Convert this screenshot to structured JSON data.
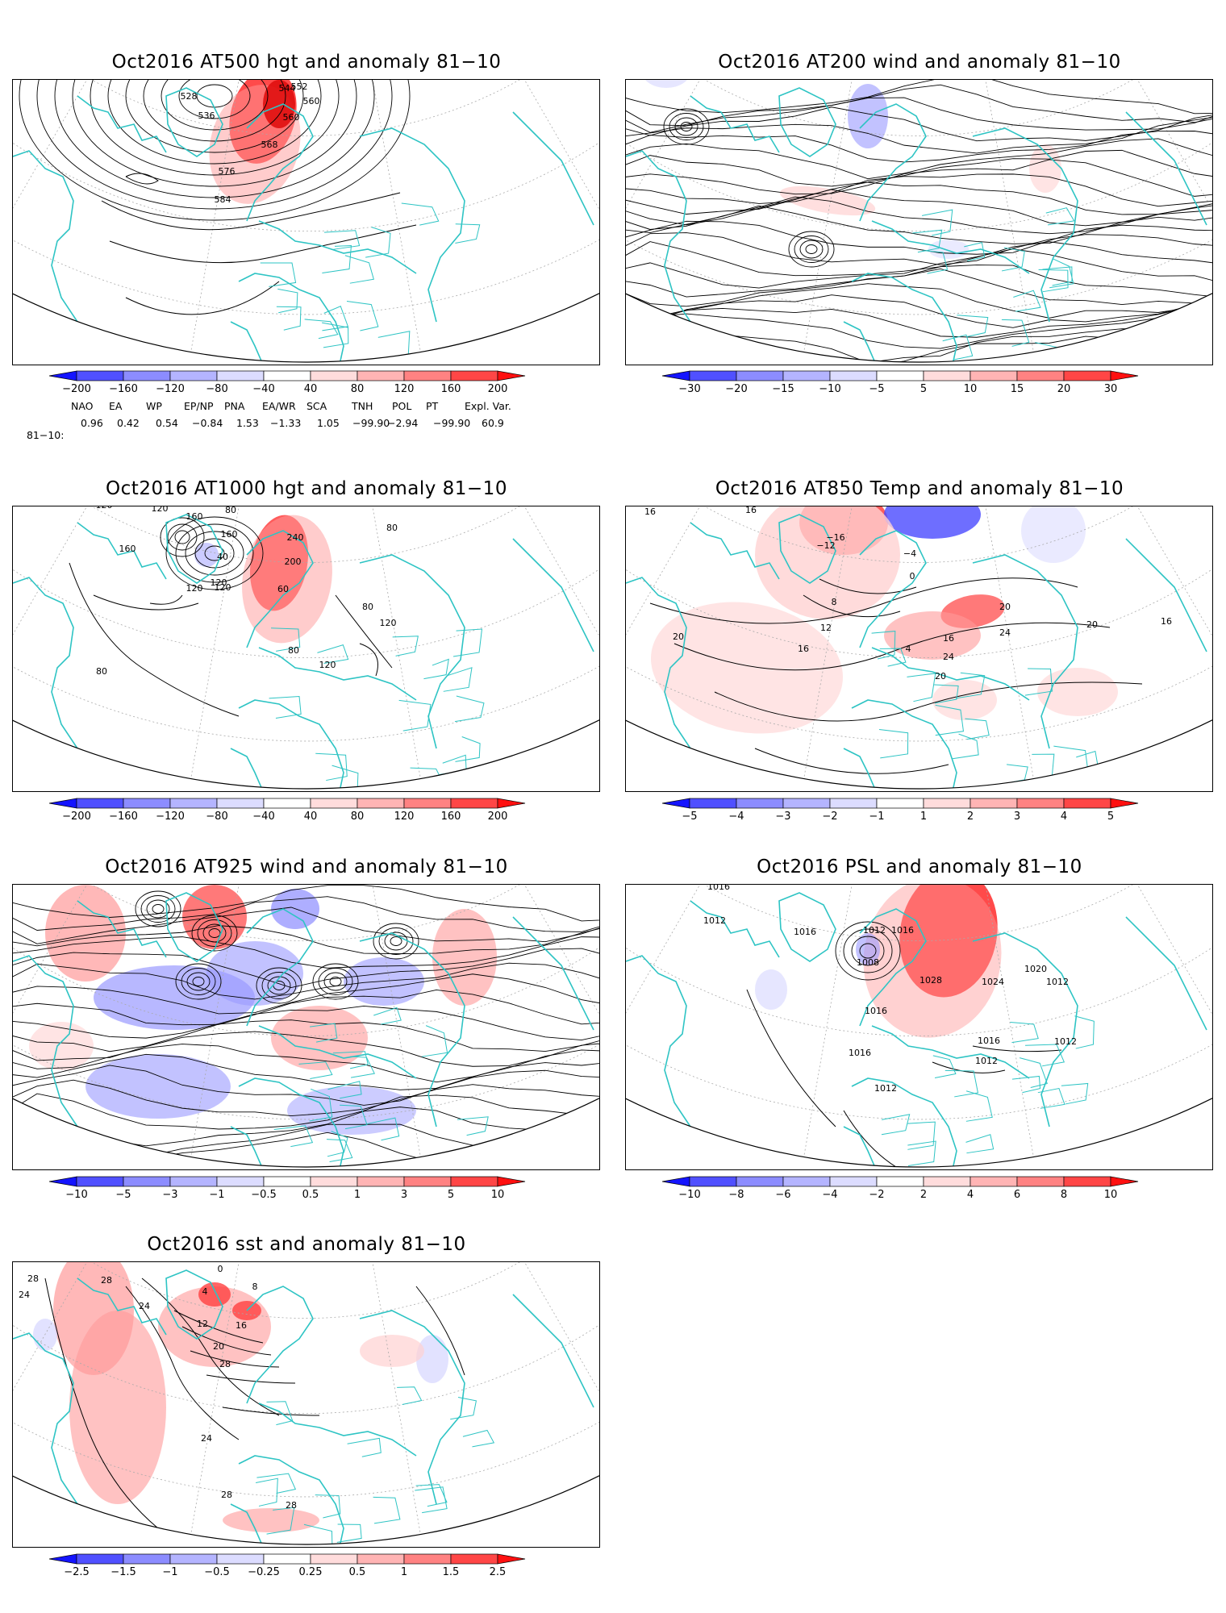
{
  "panels": [
    {
      "id": "p1",
      "title": "Oct2016  AT500  hgt  and  anomaly  81−10",
      "colorbar": [
        "-200",
        "-160",
        "-120",
        "-80",
        "-40",
        "40",
        "80",
        "120",
        "160",
        "200"
      ],
      "contour_labels": [
        "544",
        "520",
        "552",
        "528",
        "560",
        "536",
        "560",
        "568",
        "576",
        "584"
      ]
    },
    {
      "id": "p2",
      "title": "Oct2016  AT200  wind  and  anomaly  81−10",
      "colorbar": [
        "-30",
        "-20",
        "-15",
        "-10",
        "-5",
        "5",
        "10",
        "15",
        "20",
        "30"
      ],
      "contour_labels": []
    },
    {
      "id": "p3",
      "title": "Oct2016  AT1000  hgt  and  anomaly  81−10",
      "colorbar": [
        "-200",
        "-160",
        "-120",
        "-80",
        "-40",
        "40",
        "80",
        "120",
        "160",
        "200"
      ],
      "contour_labels": [
        "120",
        "120",
        "80",
        "160",
        "160",
        "40",
        "240",
        "200",
        "120",
        "80",
        "160",
        "120",
        "60",
        "80",
        "120",
        "80",
        "120",
        "80",
        "120"
      ]
    },
    {
      "id": "p4",
      "title": "Oct2016  AT850  Temp  and  anomaly  81−10",
      "colorbar": [
        "-5",
        "-4",
        "-3",
        "-2",
        "-1",
        "1",
        "2",
        "3",
        "4",
        "5"
      ],
      "contour_labels": [
        "16",
        "20",
        "-16",
        "-12",
        "-4",
        "16",
        "0",
        "8",
        "12",
        "16",
        "4",
        "24",
        "16",
        "20",
        "24",
        "20",
        "20",
        "16"
      ]
    },
    {
      "id": "p5",
      "title": "Oct2016  AT925  wind  and  anomaly  81−10",
      "colorbar": [
        "-10",
        "-5",
        "-3",
        "-1",
        "-0.5",
        "0.5",
        "1",
        "3",
        "5",
        "10"
      ],
      "contour_labels": []
    },
    {
      "id": "p6",
      "title": "Oct2016  PSL  and  anomaly  81−10",
      "colorbar": [
        "-10",
        "-8",
        "-6",
        "-4",
        "-2",
        "2",
        "4",
        "6",
        "8",
        "10"
      ],
      "contour_labels": [
        "1016",
        "1012",
        "1016",
        "1012",
        "1016",
        "1008",
        "1028",
        "1024",
        "1020",
        "1012",
        "1016",
        "1016",
        "1016",
        "1012",
        "1012",
        "1012"
      ]
    },
    {
      "id": "p7",
      "title": "Oct2016  sst  and  anomaly  81−10",
      "colorbar": [
        "-2.5",
        "-1.5",
        "-1",
        "-0.5",
        "-0.25",
        "0.25",
        "0.5",
        "1",
        "1.5",
        "2.5"
      ],
      "contour_labels": [
        "28",
        "24",
        "28",
        "24",
        "0",
        "4",
        "8",
        "12",
        "16",
        "20",
        "28",
        "24",
        "28",
        "28"
      ]
    }
  ],
  "indices": {
    "header": [
      "NAO",
      "EA",
      "WP",
      "EP/NP",
      "PNA",
      "EA/WR",
      "SCA",
      "TNH",
      "POL",
      "PT",
      "Expl. Var."
    ],
    "row_label": "81−10:",
    "values": [
      "0.96",
      "0.42",
      "0.54",
      "−0.84",
      "1.53",
      "−1.33",
      "1.05",
      "−99.90",
      "−2.94",
      "−99.90",
      "60.9"
    ]
  },
  "colors": {
    "coast": "#2ec4c4",
    "contour": "#000000",
    "grid": "#aaaaaa",
    "scale": [
      "#1414ff",
      "#5050ff",
      "#8c8cff",
      "#b4b4ff",
      "#dcdcff",
      "#ffffff",
      "#ffdcdc",
      "#ffb4b4",
      "#ff8282",
      "#ff4646",
      "#ff1010"
    ]
  }
}
